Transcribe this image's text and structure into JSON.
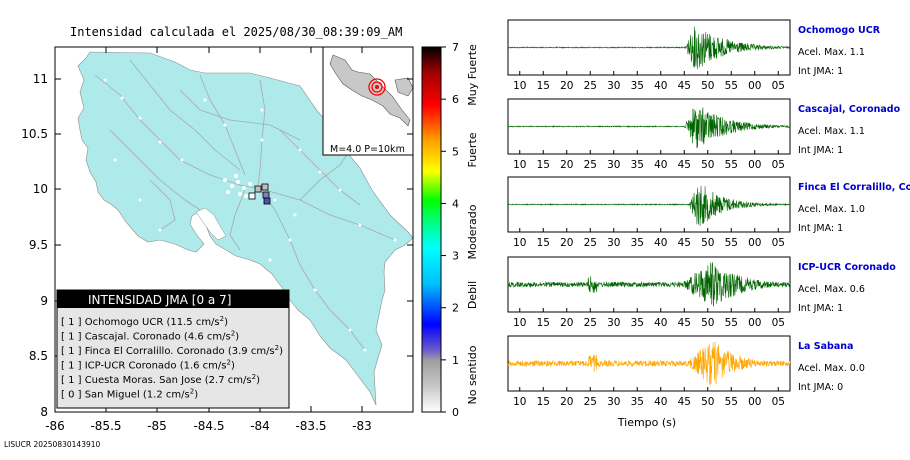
{
  "header": {
    "title": "Intensidad calculada el 2025/08/30_08:39:09_AM"
  },
  "footer": {
    "id_text": "LISUCR 20250830143910"
  },
  "map": {
    "lat_ticks": [
      "11",
      "10.5",
      "10",
      "9.5",
      "9",
      "8.5",
      "8"
    ],
    "lon_ticks": [
      "-86",
      "-85.5",
      "-85",
      "-84.5",
      "-84",
      "-83.5",
      "-83"
    ],
    "inset_label": "M=4.0 P=10km",
    "land_color": "#aeeaea",
    "water_color": "#ffffff"
  },
  "legend": {
    "title": "INTENSIDAD JMA [0 a 7]",
    "items": [
      {
        "level": "[ 1 ]",
        "name": "Ochomogo UCR",
        "accel": "(11.5 cm/s",
        "sup": "2",
        "close": ")"
      },
      {
        "level": "[ 1 ]",
        "name": "Cascajal. Coronado",
        "accel": "(4.6 cm/s",
        "sup": "2",
        "close": ")"
      },
      {
        "level": "[ 1 ]",
        "name": "Finca El Corralillo. Coronado",
        "accel": "(3.9 cm/s",
        "sup": "2",
        "close": ")"
      },
      {
        "level": "[ 1 ]",
        "name": "ICP-UCR Coronado",
        "accel": "(1.6 cm/s",
        "sup": "2",
        "close": ")"
      },
      {
        "level": "[ 1 ]",
        "name": "Cuesta Moras. San Jose",
        "accel": "(2.7 cm/s",
        "sup": "2",
        "close": ")"
      },
      {
        "level": "[ 0 ]",
        "name": "San Miguel",
        "accel": "(1.2 cm/s",
        "sup": "2",
        "close": ")"
      }
    ]
  },
  "colorbar": {
    "ticks": [
      "7",
      "6",
      "5",
      "4",
      "3",
      "2",
      "1",
      "0"
    ],
    "categories": [
      "Muy Fuerte",
      "Fuerte",
      "Moderado",
      "Debil",
      "No sentido"
    ]
  },
  "waveforms": {
    "x_ticks": [
      "10",
      "15",
      "20",
      "25",
      "30",
      "35",
      "40",
      "45",
      "50",
      "55",
      "00",
      "05"
    ],
    "x_label": "Tiempo (s)",
    "stations": [
      {
        "name": "Ochomogo UCR",
        "accel_text": "Acel. Max. 1.1",
        "int_text": "Int JMA: 1",
        "color": "#006400"
      },
      {
        "name": "Cascajal, Coronado",
        "accel_text": "Acel. Max. 1.1",
        "int_text": "Int JMA: 1",
        "color": "#006400"
      },
      {
        "name": "Finca El Corralillo, Coro",
        "accel_text": "Acel. Max. 1.0",
        "int_text": "Int JMA: 1",
        "color": "#006400"
      },
      {
        "name": "ICP-UCR Coronado",
        "accel_text": "Acel. Max. 0.6",
        "int_text": "Int JMA: 1",
        "color": "#006400"
      },
      {
        "name": "La Sabana",
        "accel_text": "Acel. Max. 0.0",
        "int_text": "Int JMA: 0",
        "color": "#ffa500"
      }
    ]
  },
  "chart_data": [
    {
      "type": "heatmap",
      "title": "Intensidad calculada el 2025/08/30_08:39:09_AM",
      "xlabel": "",
      "ylabel": "",
      "xlim": [
        -86,
        -82.5
      ],
      "ylim": [
        8,
        11.3
      ],
      "colorbar_range": [
        0,
        7
      ],
      "grid": false,
      "legend_position": "bottom-left"
    },
    {
      "type": "line",
      "xlabel": "Tiempo (s)",
      "x_ticks_seconds": [
        10,
        15,
        20,
        25,
        30,
        35,
        40,
        45,
        50,
        55,
        0,
        5
      ],
      "series": [
        {
          "name": "Ochomogo UCR",
          "peak_accel": 1.1,
          "int_jma": 1,
          "onset_s": 45,
          "peak_time_s": 47,
          "color": "#006400"
        },
        {
          "name": "Cascajal, Coronado",
          "peak_accel": 1.1,
          "int_jma": 1,
          "onset_s": 45,
          "peak_time_s": 47,
          "color": "#006400"
        },
        {
          "name": "Finca El Corralillo, Coro",
          "peak_accel": 1.0,
          "int_jma": 1,
          "onset_s": 46,
          "peak_time_s": 48,
          "color": "#006400"
        },
        {
          "name": "ICP-UCR Coronado",
          "peak_accel": 0.6,
          "int_jma": 1,
          "onset_s": 45,
          "peak_time_s": 51,
          "color": "#006400"
        },
        {
          "name": "La Sabana",
          "peak_accel": 0.0,
          "int_jma": 0,
          "onset_s": 45,
          "peak_time_s": 51,
          "color": "#ffa500"
        }
      ]
    }
  ]
}
